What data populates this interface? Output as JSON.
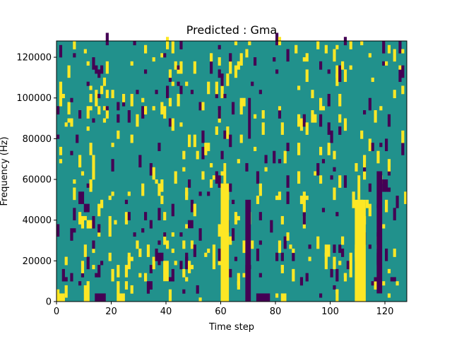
{
  "chart_data": {
    "type": "heatmap",
    "title": "Predicted : Gma",
    "xlabel": "Time step",
    "ylabel": "Frequency (Hz)",
    "xlim": [
      0,
      128
    ],
    "ylim": [
      0,
      128000
    ],
    "xticks": [
      0,
      20,
      40,
      60,
      80,
      100,
      120
    ],
    "xtick_labels": [
      "0",
      "20",
      "40",
      "60",
      "80",
      "100",
      "120"
    ],
    "yticks": [
      0,
      20000,
      40000,
      60000,
      80000,
      100000,
      120000
    ],
    "ytick_labels": [
      "0",
      "20000",
      "40000",
      "60000",
      "80000",
      "100000",
      "120000"
    ],
    "grid": "off",
    "colormap": {
      "background": "#21918c",
      "high": "#fde725",
      "low": "#440154"
    },
    "high_regions": [
      {
        "x": [
          60,
          63
        ],
        "y": [
          0,
          58000
        ]
      },
      {
        "x": [
          61,
          62
        ],
        "y": [
          58000,
          68000
        ]
      },
      {
        "x": [
          109,
          113
        ],
        "y": [
          0,
          50000
        ]
      },
      {
        "x": [
          110,
          111
        ],
        "y": [
          50000,
          62000
        ]
      },
      {
        "x": [
          0,
          3
        ],
        "y": [
          0,
          4000
        ]
      },
      {
        "x": [
          10,
          12
        ],
        "y": [
          0,
          4000
        ]
      },
      {
        "x": [
          22,
          25
        ],
        "y": [
          0,
          4000
        ]
      },
      {
        "x": [
          82,
          84
        ],
        "y": [
          0,
          4000
        ]
      },
      {
        "x": [
          39,
          41
        ],
        "y": [
          10000,
          20000
        ]
      },
      {
        "x": [
          98,
          100
        ],
        "y": [
          22000,
          28000
        ]
      }
    ],
    "low_regions": [
      {
        "x": [
          69,
          71
        ],
        "y": [
          0,
          50000
        ]
      },
      {
        "x": [
          70,
          71
        ],
        "y": [
          80000,
          100000
        ]
      },
      {
        "x": [
          117,
          119
        ],
        "y": [
          4000,
          64000
        ]
      },
      {
        "x": [
          14,
          18
        ],
        "y": [
          0,
          4000
        ]
      },
      {
        "x": [
          73,
          78
        ],
        "y": [
          0,
          4000
        ]
      },
      {
        "x": [
          48,
          50
        ],
        "y": [
          36000,
          40000
        ]
      }
    ]
  }
}
